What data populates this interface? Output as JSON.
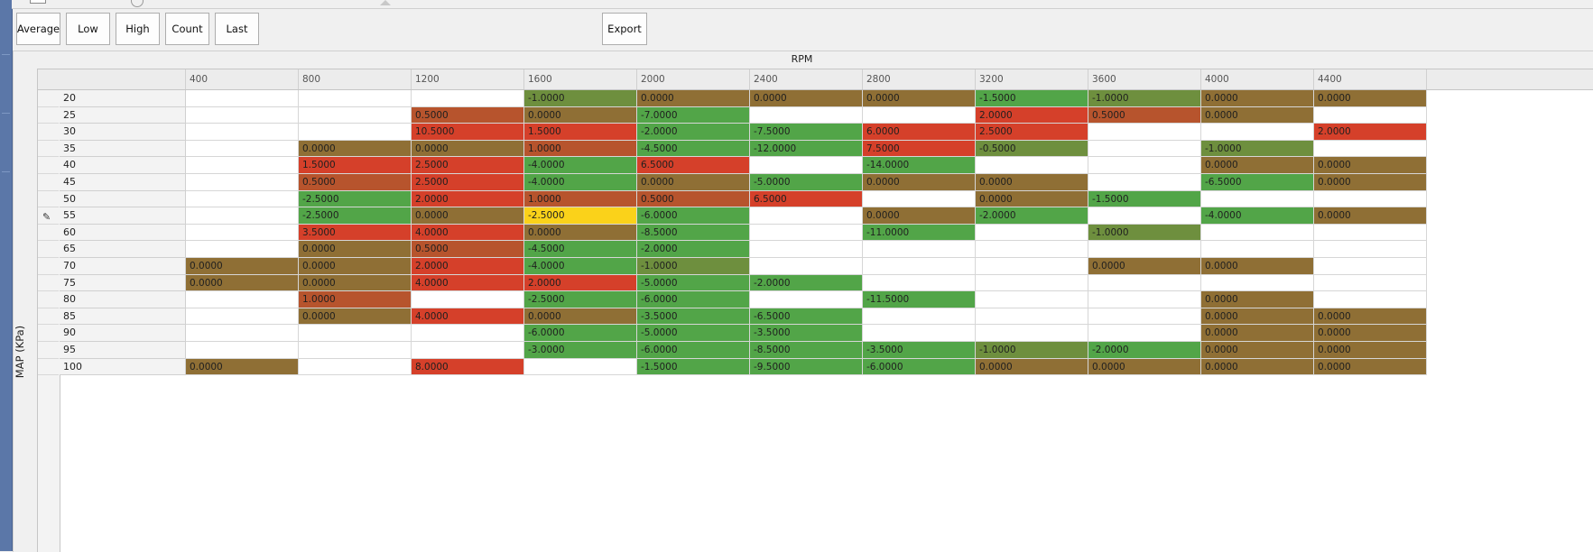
{
  "toolbar": {
    "buttons": [
      "Average",
      "Low",
      "High",
      "Count",
      "Last"
    ],
    "export_label": "Export"
  },
  "axis": {
    "x_title": "RPM",
    "y_title": "MAP (KPa)"
  },
  "colors": {
    "green": "#52a548",
    "olive": "#6e8f3e",
    "brown": "#8f6f35",
    "rust": "#b7542d",
    "red": "#d5402a",
    "yellow": "#fad21a"
  },
  "table": {
    "columns": [
      "400",
      "800",
      "1200",
      "1600",
      "2000",
      "2400",
      "2800",
      "3200",
      "3600",
      "4000",
      "4400"
    ],
    "rows": [
      {
        "map": "20",
        "edit": false,
        "cells": [
          "",
          "",
          "",
          "-1.0000",
          "0.0000",
          "0.0000",
          "0.0000",
          "-1.5000",
          "-1.0000",
          "0.0000",
          "0.0000"
        ]
      },
      {
        "map": "25",
        "edit": false,
        "cells": [
          "",
          "",
          "0.5000",
          "0.0000",
          "-7.0000",
          "",
          "",
          "2.0000",
          "0.5000",
          "0.0000",
          ""
        ]
      },
      {
        "map": "30",
        "edit": false,
        "cells": [
          "",
          "",
          "10.5000",
          "1.5000",
          "-2.0000",
          "-7.5000",
          "6.0000",
          "2.5000",
          "",
          "",
          "2.0000"
        ]
      },
      {
        "map": "35",
        "edit": false,
        "cells": [
          "",
          "0.0000",
          "0.0000",
          "1.0000",
          "-4.5000",
          "-12.0000",
          "7.5000",
          "-0.5000",
          "",
          "-1.0000",
          ""
        ]
      },
      {
        "map": "40",
        "edit": false,
        "cells": [
          "",
          "1.5000",
          "2.5000",
          "-4.0000",
          "6.5000",
          "",
          "-14.0000",
          "",
          "",
          "0.0000",
          "0.0000"
        ]
      },
      {
        "map": "45",
        "edit": false,
        "cells": [
          "",
          "0.5000",
          "2.5000",
          "-4.0000",
          "0.0000",
          "-5.0000",
          "0.0000",
          "0.0000",
          "",
          "-6.5000",
          "0.0000"
        ]
      },
      {
        "map": "50",
        "edit": false,
        "cells": [
          "",
          "-2.5000",
          "2.0000",
          "1.0000",
          "0.5000",
          "6.5000",
          "",
          "0.0000",
          "-1.5000",
          "",
          ""
        ]
      },
      {
        "map": "55",
        "edit": true,
        "cells": [
          "",
          "-2.5000",
          "0.0000",
          "-2.5000",
          "-6.0000",
          "",
          "0.0000",
          "-2.0000",
          "",
          "-4.0000",
          "0.0000"
        ]
      },
      {
        "map": "60",
        "edit": false,
        "cells": [
          "",
          "3.5000",
          "4.0000",
          "0.0000",
          "-8.5000",
          "",
          "-11.0000",
          "",
          "-1.0000",
          "",
          ""
        ]
      },
      {
        "map": "65",
        "edit": false,
        "cells": [
          "",
          "0.0000",
          "0.5000",
          "-4.5000",
          "-2.0000",
          "",
          "",
          "",
          "",
          "",
          ""
        ]
      },
      {
        "map": "70",
        "edit": false,
        "cells": [
          "0.0000",
          "0.0000",
          "2.0000",
          "-4.0000",
          "-1.0000",
          "",
          "",
          "",
          "0.0000",
          "0.0000",
          ""
        ]
      },
      {
        "map": "75",
        "edit": false,
        "cells": [
          "0.0000",
          "0.0000",
          "4.0000",
          "2.0000",
          "-5.0000",
          "-2.0000",
          "",
          "",
          "",
          "",
          ""
        ]
      },
      {
        "map": "80",
        "edit": false,
        "cells": [
          "",
          "1.0000",
          "",
          "-2.5000",
          "-6.0000",
          "",
          "-11.5000",
          "",
          "",
          "0.0000",
          ""
        ]
      },
      {
        "map": "85",
        "edit": false,
        "cells": [
          "",
          "0.0000",
          "4.0000",
          "0.0000",
          "-3.5000",
          "-6.5000",
          "",
          "",
          "",
          "0.0000",
          "0.0000"
        ]
      },
      {
        "map": "90",
        "edit": false,
        "cells": [
          "",
          "",
          "",
          "-6.0000",
          "-5.0000",
          "-3.5000",
          "",
          "",
          "",
          "0.0000",
          "0.0000"
        ]
      },
      {
        "map": "95",
        "edit": false,
        "cells": [
          "",
          "",
          "",
          "-3.0000",
          "-6.0000",
          "-8.5000",
          "-3.5000",
          "-1.0000",
          "-2.0000",
          "0.0000",
          "0.0000"
        ]
      },
      {
        "map": "100",
        "edit": false,
        "cells": [
          "0.0000",
          "",
          "8.0000",
          "",
          "-1.5000",
          "-9.5000",
          "-6.0000",
          "0.0000",
          "0.0000",
          "0.0000",
          "0.0000"
        ]
      }
    ],
    "selected": {
      "row": 7,
      "col": 3
    }
  }
}
